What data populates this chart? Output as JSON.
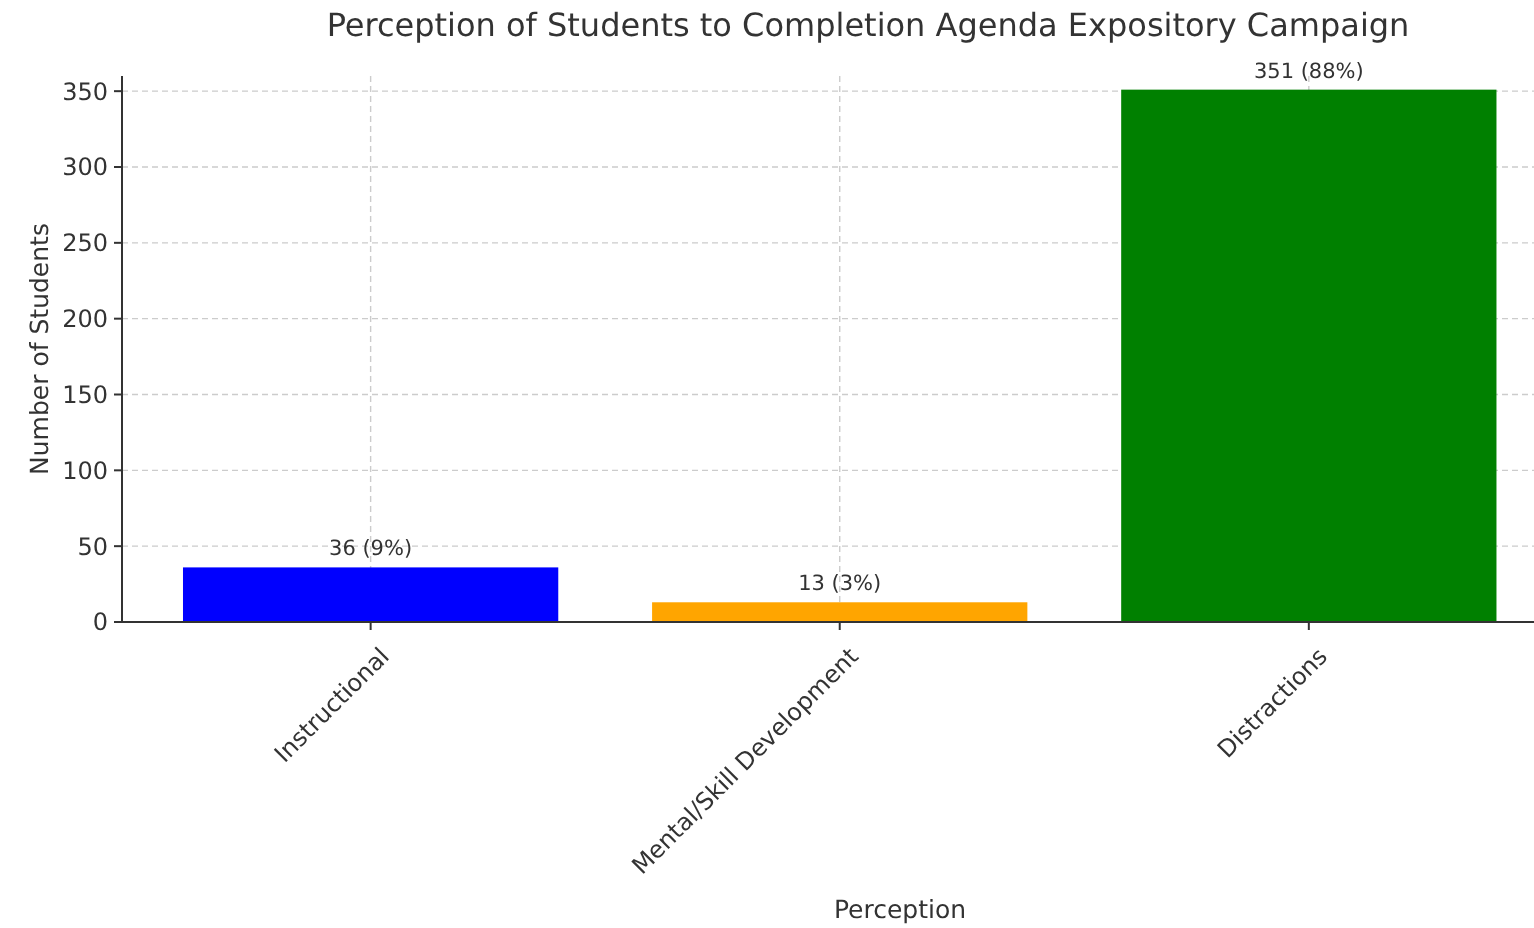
{
  "chart_data": {
    "type": "bar",
    "title": "Perception of Students to Completion Agenda Expository Campaign",
    "xlabel": "Perception",
    "ylabel": "Number of Students",
    "categories": [
      "Instructional",
      "Mental/Skill Development",
      "Distractions"
    ],
    "values": [
      36,
      13,
      351
    ],
    "colors": [
      "#0000ff",
      "#ffa500",
      "#008000"
    ],
    "value_labels": [
      "36 (9%)",
      "13 (3%)",
      "351 (88%)"
    ],
    "ylim": [
      0,
      360
    ],
    "yticks": [
      0,
      50,
      100,
      150,
      200,
      250,
      300,
      350
    ],
    "grid": true
  }
}
